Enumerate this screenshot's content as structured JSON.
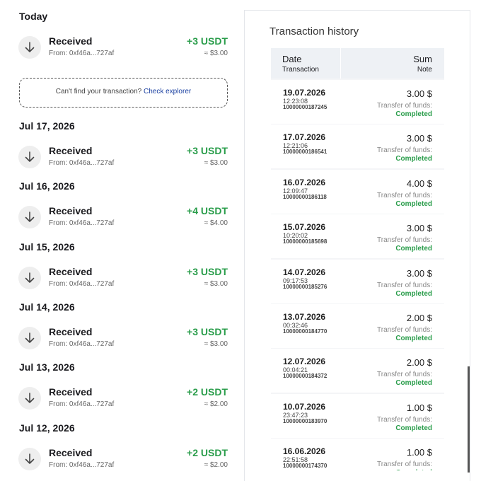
{
  "left": {
    "groups": [
      {
        "date": "Today",
        "items": [
          {
            "title": "Received",
            "from": "From: 0xf46a...727af",
            "amount": "+3 USDT",
            "fiat": "≈ $3.00"
          }
        ]
      },
      {
        "date": "Jul 17, 2026",
        "items": [
          {
            "title": "Received",
            "from": "From: 0xf46a...727af",
            "amount": "+3 USDT",
            "fiat": "≈ $3.00"
          }
        ]
      },
      {
        "date": "Jul 16, 2026",
        "items": [
          {
            "title": "Received",
            "from": "From: 0xf46a...727af",
            "amount": "+4 USDT",
            "fiat": "≈ $4.00"
          }
        ]
      },
      {
        "date": "Jul 15, 2026",
        "items": [
          {
            "title": "Received",
            "from": "From: 0xf46a...727af",
            "amount": "+3 USDT",
            "fiat": "≈ $3.00"
          }
        ]
      },
      {
        "date": "Jul 14, 2026",
        "items": [
          {
            "title": "Received",
            "from": "From: 0xf46a...727af",
            "amount": "+3 USDT",
            "fiat": "≈ $3.00"
          }
        ]
      },
      {
        "date": "Jul 13, 2026",
        "items": [
          {
            "title": "Received",
            "from": "From: 0xf46a...727af",
            "amount": "+2 USDT",
            "fiat": "≈ $2.00"
          }
        ]
      },
      {
        "date": "Jul 12, 2026",
        "items": [
          {
            "title": "Received",
            "from": "From: 0xf46a...727af",
            "amount": "+2 USDT",
            "fiat": "≈ $2.00"
          }
        ]
      }
    ],
    "explorer": {
      "text": "Can't find your transaction?",
      "link": "Check explorer"
    }
  },
  "history": {
    "title": "Transaction history",
    "columns": {
      "date": "Date",
      "date_sub": "Transaction",
      "sum": "Sum",
      "sum_sub": "Note"
    },
    "rows": [
      {
        "date": "19.07.2026",
        "time": "12:23:08",
        "id": "10000000187245",
        "sum": "3.00 $",
        "note": "Transfer of funds:",
        "status": "Completed"
      },
      {
        "date": "17.07.2026",
        "time": "12:21:06",
        "id": "10000000186541",
        "sum": "3.00 $",
        "note": "Transfer of funds:",
        "status": "Completed"
      },
      {
        "date": "16.07.2026",
        "time": "12:09:47",
        "id": "10000000186118",
        "sum": "4.00 $",
        "note": "Transfer of funds:",
        "status": "Completed"
      },
      {
        "date": "15.07.2026",
        "time": "10:20:02",
        "id": "10000000185698",
        "sum": "3.00 $",
        "note": "Transfer of funds:",
        "status": "Completed"
      },
      {
        "date": "14.07.2026",
        "time": "09:17:53",
        "id": "10000000185276",
        "sum": "3.00 $",
        "note": "Transfer of funds:",
        "status": "Completed"
      },
      {
        "date": "13.07.2026",
        "time": "00:32:46",
        "id": "10000000184770",
        "sum": "2.00 $",
        "note": "Transfer of funds:",
        "status": "Completed"
      },
      {
        "date": "12.07.2026",
        "time": "00:04:21",
        "id": "10000000184372",
        "sum": "2.00 $",
        "note": "Transfer of funds:",
        "status": "Completed"
      },
      {
        "date": "10.07.2026",
        "time": "23:47:23",
        "id": "10000000183970",
        "sum": "1.00 $",
        "note": "Transfer of funds:",
        "status": "Completed"
      },
      {
        "date": "16.06.2026",
        "time": "22:51:58",
        "id": "10000000174370",
        "sum": "1.00 $",
        "note": "Transfer of funds:",
        "status": "Completed"
      }
    ]
  }
}
